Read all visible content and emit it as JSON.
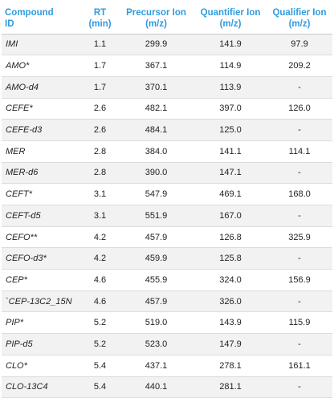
{
  "headers": [
    [
      "Compound",
      "ID"
    ],
    [
      "RT",
      "(min)"
    ],
    [
      "Precursor Ion",
      "(m/z)"
    ],
    [
      "Quantifier Ion",
      "(m/z)"
    ],
    [
      "Qualifier Ion",
      "(m/z)"
    ]
  ],
  "rows": [
    [
      "IMI",
      "1.1",
      "299.9",
      "141.9",
      "97.9"
    ],
    [
      "AMO*",
      "1.7",
      "367.1",
      "114.9",
      "209.2"
    ],
    [
      "AMO-d4",
      "1.7",
      "370.1",
      "113.9",
      "-"
    ],
    [
      "CEFE*",
      "2.6",
      "482.1",
      "397.0",
      "126.0"
    ],
    [
      "CEFE-d3",
      "2.6",
      "484.1",
      "125.0",
      "-"
    ],
    [
      "MER",
      "2.8",
      "384.0",
      "141.1",
      "114.1"
    ],
    [
      "MER-d6",
      "2.8",
      "390.0",
      "147.1",
      "-"
    ],
    [
      "CEFT*",
      "3.1",
      "547.9",
      "469.1",
      "168.0"
    ],
    [
      "CEFT-d5",
      "3.1",
      "551.9",
      "167.0",
      "-"
    ],
    [
      "CEFO**",
      "4.2",
      "457.9",
      "126.8",
      "325.9"
    ],
    [
      "CEFO-d3*",
      "4.2",
      "459.9",
      "125.8",
      "-"
    ],
    [
      "CEP*",
      "4.6",
      "455.9",
      "324.0",
      "156.9"
    ],
    [
      "`CEP-13C2_15N",
      "4.6",
      "457.9",
      "326.0",
      "-"
    ],
    [
      "PIP*",
      "5.2",
      "519.0",
      "143.9",
      "115.9"
    ],
    [
      "PIP-d5",
      "5.2",
      "523.0",
      "147.9",
      "-"
    ],
    [
      "CLO*",
      "5.4",
      "437.1",
      "278.1",
      "161.1"
    ],
    [
      "CLO-13C4",
      "5.4",
      "440.1",
      "281.1",
      "-"
    ]
  ],
  "colors": {
    "header_text": "#2f9be0",
    "row_stripe": "#f2f2f2",
    "cell_text": "#222222"
  }
}
